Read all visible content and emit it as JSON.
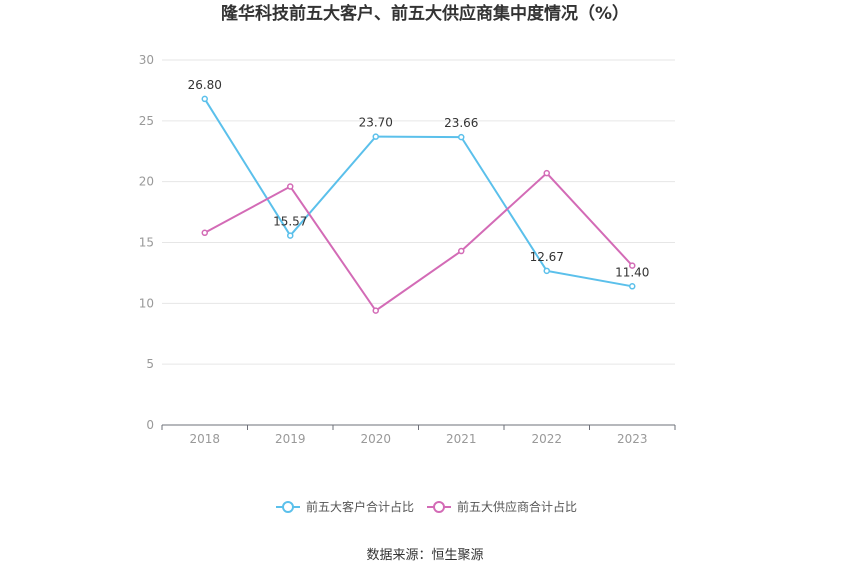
{
  "chart_data": {
    "type": "line",
    "title": "隆华科技前五大客户、前五大供应商集中度情况（%）",
    "categories": [
      "2018",
      "2019",
      "2020",
      "2021",
      "2022",
      "2023"
    ],
    "ylim": [
      0,
      30
    ],
    "yticks": [
      0,
      5,
      10,
      15,
      20,
      25,
      30
    ],
    "grid": true,
    "legend_position": "bottom",
    "series": [
      {
        "name": "前五大客户合计占比",
        "color": "#5bc0eb",
        "values": [
          26.8,
          15.57,
          23.7,
          23.66,
          12.67,
          11.4
        ],
        "labels": [
          "26.80",
          "15.57",
          "23.70",
          "23.66",
          "12.67",
          "11.40"
        ]
      },
      {
        "name": "前五大供应商合计占比",
        "color": "#d36bb6",
        "values": [
          15.8,
          19.6,
          9.4,
          14.3,
          20.7,
          13.1
        ]
      }
    ],
    "source": "数据来源：恒生聚源"
  }
}
